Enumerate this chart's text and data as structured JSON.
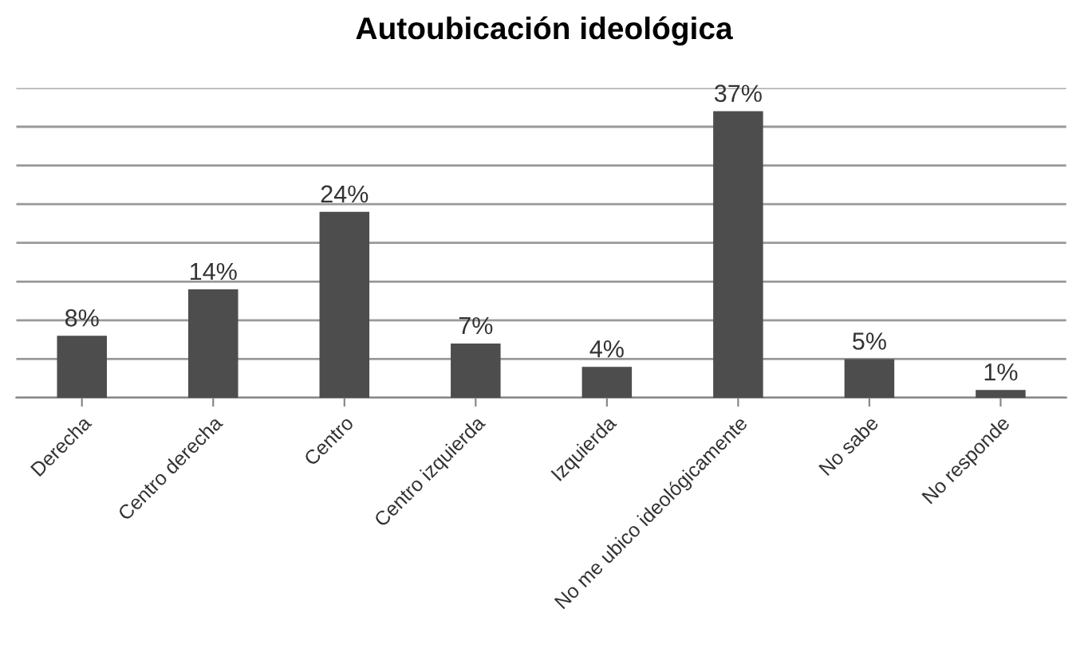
{
  "chart_data": {
    "type": "bar",
    "title": "Autoubicación ideológica",
    "categories": [
      "Derecha",
      "Centro derecha",
      "Centro",
      "Centro izquierda",
      "Izquierda",
      "No me ubico ideológicamente",
      "No sabe",
      "No responde"
    ],
    "values": [
      8,
      14,
      24,
      7,
      4,
      37,
      5,
      1
    ],
    "value_labels": [
      "8%",
      "14%",
      "24%",
      "7%",
      "4%",
      "37%",
      "5%",
      "1%"
    ],
    "color": "#4d4d4d",
    "ylim": [
      0,
      40
    ],
    "yticks": [
      {
        "value": 0,
        "label": null
      },
      {
        "value": 5,
        "label": null
      },
      {
        "value": 10,
        "label": null
      },
      {
        "value": 15,
        "label": null
      },
      {
        "value": 20,
        "label": null
      },
      {
        "value": 25,
        "label": null
      },
      {
        "value": 30,
        "label": null
      },
      {
        "value": 35,
        "label": null
      },
      {
        "value": 40,
        "label": null
      }
    ],
    "tick_labels": "x",
    "grid": "y",
    "legend": false
  }
}
